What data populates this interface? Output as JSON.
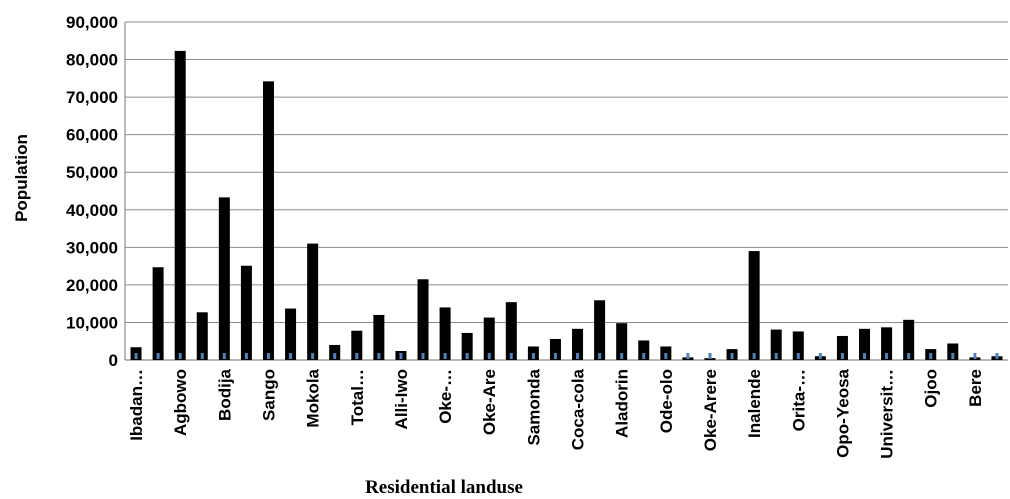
{
  "chart_data": {
    "type": "bar",
    "title": "",
    "xlabel": "Residential landuse",
    "ylabel": "Population",
    "ylim": [
      0,
      90000
    ],
    "yticks": [
      0,
      10000,
      20000,
      30000,
      40000,
      50000,
      60000,
      70000,
      80000,
      90000
    ],
    "ytick_labels": [
      "0",
      "10,000",
      "20,000",
      "30,000",
      "40,000",
      "50,000",
      "60,000",
      "70,000",
      "80,000",
      "90,000"
    ],
    "grid": true,
    "legend": "none",
    "bar_color": "#000000",
    "values": [
      3400,
      24700,
      82300,
      12700,
      43300,
      25100,
      74200,
      13700,
      31000,
      4000,
      7800,
      12000,
      2400,
      21500,
      14000,
      7200,
      11300,
      15400,
      3600,
      5600,
      8300,
      15900,
      9800,
      5200,
      3600,
      700,
      500,
      2900,
      29000,
      8100,
      7600,
      1000,
      6400,
      8300,
      8700,
      10700,
      2900,
      4400,
      700,
      1000
    ],
    "tick_labels": [
      {
        "index": 0,
        "label": "Ibadan…"
      },
      {
        "index": 2,
        "label": "Agbowo"
      },
      {
        "index": 4,
        "label": "Bodija"
      },
      {
        "index": 6,
        "label": "Sango"
      },
      {
        "index": 8,
        "label": "Mokola"
      },
      {
        "index": 10,
        "label": "Total…"
      },
      {
        "index": 12,
        "label": "Alli-Iwo"
      },
      {
        "index": 14,
        "label": "Oke-…"
      },
      {
        "index": 16,
        "label": "Oke-Are"
      },
      {
        "index": 18,
        "label": "Samonda"
      },
      {
        "index": 20,
        "label": "Coca-cola"
      },
      {
        "index": 22,
        "label": "Aladorin"
      },
      {
        "index": 24,
        "label": "Ode-olo"
      },
      {
        "index": 26,
        "label": "Oke-Arere"
      },
      {
        "index": 28,
        "label": "Inalende"
      },
      {
        "index": 30,
        "label": "Orita-…"
      },
      {
        "index": 32,
        "label": "Opo-Yeosa"
      },
      {
        "index": 34,
        "label": "Universit…"
      },
      {
        "index": 36,
        "label": "Ojoo"
      },
      {
        "index": 38,
        "label": "Bere"
      }
    ]
  }
}
